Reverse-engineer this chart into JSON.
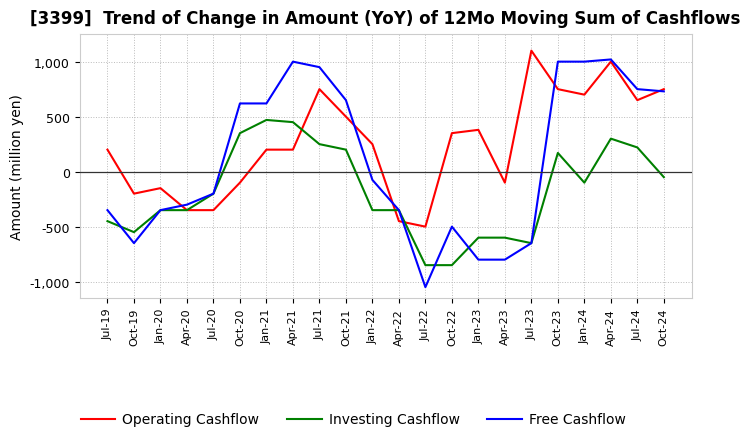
{
  "title": "[3399]  Trend of Change in Amount (YoY) of 12Mo Moving Sum of Cashflows",
  "ylabel": "Amount (million yen)",
  "ylim": [
    -1150,
    1250
  ],
  "yticks": [
    -1000,
    -500,
    0,
    500,
    1000
  ],
  "x_labels": [
    "Jul-19",
    "Oct-19",
    "Jan-20",
    "Apr-20",
    "Jul-20",
    "Oct-20",
    "Jan-21",
    "Apr-21",
    "Jul-21",
    "Oct-21",
    "Jan-22",
    "Apr-22",
    "Jul-22",
    "Oct-22",
    "Jan-23",
    "Apr-23",
    "Jul-23",
    "Oct-23",
    "Jan-24",
    "Apr-24",
    "Jul-24",
    "Oct-24"
  ],
  "operating": [
    200,
    -200,
    -150,
    -350,
    -350,
    -100,
    200,
    200,
    750,
    500,
    250,
    -450,
    -500,
    350,
    380,
    -100,
    1100,
    750,
    700,
    1000,
    650,
    750
  ],
  "investing": [
    -450,
    -550,
    -350,
    -350,
    -200,
    350,
    470,
    450,
    250,
    200,
    -350,
    -350,
    -850,
    -850,
    -600,
    -600,
    -650,
    170,
    -100,
    300,
    220,
    -50
  ],
  "free": [
    -350,
    -650,
    -350,
    -300,
    -200,
    620,
    620,
    1000,
    950,
    650,
    -75,
    -350,
    -1050,
    -500,
    -800,
    -800,
    -650,
    1000,
    1000,
    1020,
    750,
    730
  ],
  "operating_color": "#ff0000",
  "investing_color": "#008000",
  "free_color": "#0000ff",
  "background_color": "#ffffff",
  "grid_color": "#bbbbbb",
  "title_fontsize": 12,
  "axis_fontsize": 10,
  "legend_fontsize": 10
}
